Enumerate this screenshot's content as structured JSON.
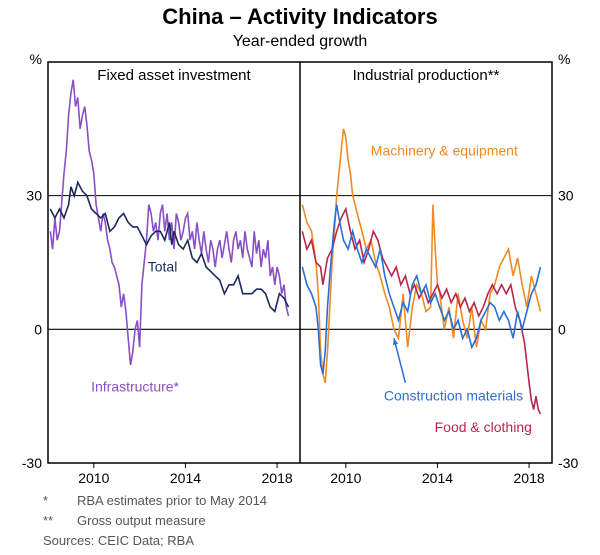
{
  "title": "China – Activity Indicators",
  "subtitle": "Year-ended growth",
  "footnote1_marker": "*",
  "footnote1_text": "RBA estimates prior to May 2014",
  "footnote2_marker": "**",
  "footnote2_text": "Gross output measure",
  "sources_label": "Sources:",
  "sources_text": "CEIC Data; RBA",
  "ylabel_left": "%",
  "ylabel_right": "%",
  "panel_left_title": "Fixed asset investment",
  "panel_right_title": "Industrial production**",
  "label_total": "Total",
  "label_infrastructure": "Infrastructure*",
  "label_machinery": "Machinery & equipment",
  "label_construction": "Construction materials",
  "label_food": "Food & clothing",
  "ylim": [
    -30,
    60
  ],
  "yticks": [
    -30,
    0,
    30
  ],
  "xrange": [
    2008,
    2019
  ],
  "xticks": [
    2010,
    2014,
    2018
  ],
  "colors": {
    "total": "#1b2a5a",
    "infrastructure": "#8a4fc4",
    "machinery": "#f08a24",
    "construction": "#2a6fd6",
    "food": "#b8274a",
    "axis": "#000000",
    "grid": "#000000",
    "bg": "#ffffff",
    "text": "#000000",
    "foot": "#555555"
  },
  "fonts": {
    "title_size": 22,
    "title_weight": "bold",
    "subtitle_size": 16,
    "panel_title_size": 15,
    "tick_size": 14,
    "label_size": 14,
    "foot_size": 13
  },
  "left_panel": {
    "series": {
      "total": [
        [
          2008.1,
          27
        ],
        [
          2008.3,
          25
        ],
        [
          2008.5,
          27
        ],
        [
          2008.7,
          25
        ],
        [
          2008.9,
          28
        ],
        [
          2009.0,
          32
        ],
        [
          2009.15,
          30
        ],
        [
          2009.3,
          33
        ],
        [
          2009.5,
          31
        ],
        [
          2009.7,
          30
        ],
        [
          2009.9,
          27
        ],
        [
          2010.1,
          26
        ],
        [
          2010.3,
          25
        ],
        [
          2010.5,
          26
        ],
        [
          2010.7,
          22
        ],
        [
          2010.9,
          23
        ],
        [
          2011.1,
          25
        ],
        [
          2011.3,
          26
        ],
        [
          2011.5,
          24
        ],
        [
          2011.7,
          23
        ],
        [
          2011.9,
          23
        ],
        [
          2012.1,
          21
        ],
        [
          2012.3,
          19
        ],
        [
          2012.5,
          21
        ],
        [
          2012.7,
          22
        ],
        [
          2012.9,
          22
        ],
        [
          2013.1,
          20
        ],
        [
          2013.3,
          24
        ],
        [
          2013.4,
          19
        ],
        [
          2013.5,
          22
        ],
        [
          2013.7,
          19
        ],
        [
          2013.9,
          18
        ],
        [
          2014.1,
          20
        ],
        [
          2014.3,
          16
        ],
        [
          2014.5,
          15
        ],
        [
          2014.7,
          17
        ],
        [
          2014.9,
          14
        ],
        [
          2015.1,
          13
        ],
        [
          2015.3,
          12
        ],
        [
          2015.5,
          11
        ],
        [
          2015.7,
          8
        ],
        [
          2015.9,
          10
        ],
        [
          2016.1,
          10
        ],
        [
          2016.3,
          12
        ],
        [
          2016.5,
          8
        ],
        [
          2016.7,
          8
        ],
        [
          2016.9,
          8
        ],
        [
          2017.1,
          9
        ],
        [
          2017.3,
          9
        ],
        [
          2017.5,
          8
        ],
        [
          2017.7,
          5
        ],
        [
          2017.9,
          4
        ],
        [
          2018.1,
          8
        ],
        [
          2018.3,
          7
        ],
        [
          2018.5,
          5
        ]
      ],
      "infrastructure": [
        [
          2008.1,
          22
        ],
        [
          2008.2,
          18
        ],
        [
          2008.3,
          25
        ],
        [
          2008.4,
          20
        ],
        [
          2008.5,
          22
        ],
        [
          2008.7,
          35
        ],
        [
          2008.8,
          40
        ],
        [
          2008.9,
          48
        ],
        [
          2009.0,
          53
        ],
        [
          2009.1,
          56
        ],
        [
          2009.2,
          50
        ],
        [
          2009.3,
          52
        ],
        [
          2009.4,
          45
        ],
        [
          2009.5,
          48
        ],
        [
          2009.6,
          50
        ],
        [
          2009.7,
          46
        ],
        [
          2009.8,
          40
        ],
        [
          2009.9,
          38
        ],
        [
          2010.0,
          35
        ],
        [
          2010.1,
          28
        ],
        [
          2010.2,
          25
        ],
        [
          2010.3,
          22
        ],
        [
          2010.4,
          26
        ],
        [
          2010.5,
          24
        ],
        [
          2010.6,
          20
        ],
        [
          2010.7,
          18
        ],
        [
          2010.8,
          15
        ],
        [
          2010.9,
          14
        ],
        [
          2011.0,
          12
        ],
        [
          2011.1,
          10
        ],
        [
          2011.2,
          5
        ],
        [
          2011.3,
          8
        ],
        [
          2011.4,
          4
        ],
        [
          2011.5,
          -2
        ],
        [
          2011.6,
          -8
        ],
        [
          2011.7,
          -5
        ],
        [
          2011.8,
          0
        ],
        [
          2011.9,
          2
        ],
        [
          2012.0,
          -4
        ],
        [
          2012.1,
          10
        ],
        [
          2012.2,
          15
        ],
        [
          2012.3,
          20
        ],
        [
          2012.4,
          28
        ],
        [
          2012.5,
          26
        ],
        [
          2012.6,
          22
        ],
        [
          2012.7,
          24
        ],
        [
          2012.8,
          20
        ],
        [
          2012.9,
          26
        ],
        [
          2013.0,
          28
        ],
        [
          2013.1,
          22
        ],
        [
          2013.2,
          26
        ],
        [
          2013.3,
          20
        ],
        [
          2013.4,
          24
        ],
        [
          2013.5,
          18
        ],
        [
          2013.6,
          26
        ],
        [
          2013.7,
          24
        ],
        [
          2013.8,
          20
        ],
        [
          2013.9,
          22
        ],
        [
          2014.0,
          25
        ],
        [
          2014.1,
          26
        ],
        [
          2014.2,
          20
        ],
        [
          2014.3,
          22
        ],
        [
          2014.4,
          18
        ],
        [
          2014.5,
          24
        ],
        [
          2014.6,
          20
        ],
        [
          2014.7,
          17
        ],
        [
          2014.8,
          22
        ],
        [
          2014.9,
          18
        ],
        [
          2015.0,
          15
        ],
        [
          2015.1,
          20
        ],
        [
          2015.2,
          18
        ],
        [
          2015.3,
          14
        ],
        [
          2015.4,
          18
        ],
        [
          2015.5,
          20
        ],
        [
          2015.6,
          16
        ],
        [
          2015.7,
          19
        ],
        [
          2015.8,
          22
        ],
        [
          2015.9,
          18
        ],
        [
          2016.0,
          15
        ],
        [
          2016.1,
          20
        ],
        [
          2016.2,
          22
        ],
        [
          2016.3,
          18
        ],
        [
          2016.4,
          20
        ],
        [
          2016.5,
          16
        ],
        [
          2016.6,
          22
        ],
        [
          2016.7,
          18
        ],
        [
          2016.8,
          16
        ],
        [
          2016.9,
          14
        ],
        [
          2017.0,
          22
        ],
        [
          2017.1,
          17
        ],
        [
          2017.2,
          20
        ],
        [
          2017.3,
          14
        ],
        [
          2017.4,
          18
        ],
        [
          2017.5,
          16
        ],
        [
          2017.6,
          20
        ],
        [
          2017.7,
          12
        ],
        [
          2017.8,
          14
        ],
        [
          2017.9,
          10
        ],
        [
          2018.0,
          14
        ],
        [
          2018.1,
          12
        ],
        [
          2018.2,
          8
        ],
        [
          2018.3,
          10
        ],
        [
          2018.4,
          5
        ],
        [
          2018.5,
          3
        ]
      ]
    }
  },
  "right_panel": {
    "series": {
      "machinery": [
        [
          2008.1,
          28
        ],
        [
          2008.3,
          24
        ],
        [
          2008.5,
          22
        ],
        [
          2008.7,
          15
        ],
        [
          2008.8,
          8
        ],
        [
          2008.9,
          -5
        ],
        [
          2009.0,
          -10
        ],
        [
          2009.1,
          -12
        ],
        [
          2009.2,
          -5
        ],
        [
          2009.3,
          5
        ],
        [
          2009.4,
          15
        ],
        [
          2009.5,
          22
        ],
        [
          2009.6,
          30
        ],
        [
          2009.7,
          35
        ],
        [
          2009.8,
          40
        ],
        [
          2009.9,
          45
        ],
        [
          2010.0,
          43
        ],
        [
          2010.1,
          38
        ],
        [
          2010.2,
          35
        ],
        [
          2010.3,
          30
        ],
        [
          2010.4,
          28
        ],
        [
          2010.5,
          26
        ],
        [
          2010.7,
          22
        ],
        [
          2010.9,
          18
        ],
        [
          2011.1,
          20
        ],
        [
          2011.3,
          15
        ],
        [
          2011.5,
          12
        ],
        [
          2011.7,
          8
        ],
        [
          2011.9,
          5
        ],
        [
          2012.1,
          0
        ],
        [
          2012.3,
          -2
        ],
        [
          2012.5,
          8
        ],
        [
          2012.7,
          -4
        ],
        [
          2012.9,
          5
        ],
        [
          2013.1,
          10
        ],
        [
          2013.3,
          8
        ],
        [
          2013.5,
          4
        ],
        [
          2013.7,
          5
        ],
        [
          2013.8,
          28
        ],
        [
          2013.9,
          18
        ],
        [
          2014.0,
          10
        ],
        [
          2014.1,
          8
        ],
        [
          2014.3,
          0
        ],
        [
          2014.5,
          5
        ],
        [
          2014.7,
          -2
        ],
        [
          2014.9,
          8
        ],
        [
          2015.1,
          2
        ],
        [
          2015.3,
          -2
        ],
        [
          2015.5,
          5
        ],
        [
          2015.7,
          -4
        ],
        [
          2015.9,
          2
        ],
        [
          2016.1,
          0
        ],
        [
          2016.3,
          8
        ],
        [
          2016.5,
          10
        ],
        [
          2016.7,
          14
        ],
        [
          2016.9,
          16
        ],
        [
          2017.1,
          18
        ],
        [
          2017.3,
          12
        ],
        [
          2017.5,
          16
        ],
        [
          2017.7,
          10
        ],
        [
          2017.9,
          5
        ],
        [
          2018.1,
          12
        ],
        [
          2018.3,
          8
        ],
        [
          2018.5,
          4
        ]
      ],
      "construction": [
        [
          2008.1,
          14
        ],
        [
          2008.3,
          10
        ],
        [
          2008.5,
          8
        ],
        [
          2008.7,
          5
        ],
        [
          2008.8,
          0
        ],
        [
          2008.9,
          -8
        ],
        [
          2009.0,
          -10
        ],
        [
          2009.1,
          -5
        ],
        [
          2009.2,
          5
        ],
        [
          2009.3,
          12
        ],
        [
          2009.4,
          18
        ],
        [
          2009.5,
          24
        ],
        [
          2009.6,
          28
        ],
        [
          2009.7,
          25
        ],
        [
          2009.9,
          20
        ],
        [
          2010.1,
          18
        ],
        [
          2010.3,
          22
        ],
        [
          2010.5,
          18
        ],
        [
          2010.7,
          15
        ],
        [
          2010.9,
          18
        ],
        [
          2011.1,
          16
        ],
        [
          2011.3,
          14
        ],
        [
          2011.5,
          18
        ],
        [
          2011.7,
          12
        ],
        [
          2011.9,
          8
        ],
        [
          2012.1,
          5
        ],
        [
          2012.3,
          2
        ],
        [
          2012.5,
          6
        ],
        [
          2012.7,
          4
        ],
        [
          2012.9,
          10
        ],
        [
          2013.1,
          12
        ],
        [
          2013.3,
          8
        ],
        [
          2013.5,
          10
        ],
        [
          2013.7,
          6
        ],
        [
          2013.9,
          8
        ],
        [
          2014.1,
          5
        ],
        [
          2014.3,
          2
        ],
        [
          2014.5,
          4
        ],
        [
          2014.7,
          0
        ],
        [
          2014.9,
          2
        ],
        [
          2015.1,
          -2
        ],
        [
          2015.3,
          0
        ],
        [
          2015.5,
          -4
        ],
        [
          2015.7,
          -2
        ],
        [
          2015.9,
          2
        ],
        [
          2016.1,
          4
        ],
        [
          2016.3,
          6
        ],
        [
          2016.5,
          5
        ],
        [
          2016.7,
          2
        ],
        [
          2016.9,
          4
        ],
        [
          2017.1,
          2
        ],
        [
          2017.3,
          -2
        ],
        [
          2017.5,
          4
        ],
        [
          2017.7,
          0
        ],
        [
          2017.9,
          4
        ],
        [
          2018.1,
          8
        ],
        [
          2018.3,
          10
        ],
        [
          2018.5,
          14
        ]
      ],
      "food": [
        [
          2008.1,
          22
        ],
        [
          2008.3,
          18
        ],
        [
          2008.5,
          20
        ],
        [
          2008.7,
          15
        ],
        [
          2008.9,
          14
        ],
        [
          2009.0,
          10
        ],
        [
          2009.2,
          16
        ],
        [
          2009.4,
          18
        ],
        [
          2009.6,
          22
        ],
        [
          2009.8,
          25
        ],
        [
          2010.0,
          27
        ],
        [
          2010.2,
          22
        ],
        [
          2010.4,
          18
        ],
        [
          2010.6,
          20
        ],
        [
          2010.8,
          15
        ],
        [
          2011.0,
          18
        ],
        [
          2011.2,
          22
        ],
        [
          2011.4,
          20
        ],
        [
          2011.6,
          16
        ],
        [
          2011.8,
          14
        ],
        [
          2012.0,
          12
        ],
        [
          2012.2,
          14
        ],
        [
          2012.4,
          10
        ],
        [
          2012.6,
          12
        ],
        [
          2012.8,
          8
        ],
        [
          2013.0,
          10
        ],
        [
          2013.2,
          7
        ],
        [
          2013.4,
          9
        ],
        [
          2013.6,
          6
        ],
        [
          2013.8,
          8
        ],
        [
          2014.0,
          10
        ],
        [
          2014.2,
          7
        ],
        [
          2014.4,
          9
        ],
        [
          2014.6,
          6
        ],
        [
          2014.8,
          8
        ],
        [
          2015.0,
          5
        ],
        [
          2015.2,
          7
        ],
        [
          2015.4,
          4
        ],
        [
          2015.6,
          6
        ],
        [
          2015.8,
          3
        ],
        [
          2016.0,
          5
        ],
        [
          2016.2,
          8
        ],
        [
          2016.4,
          10
        ],
        [
          2016.6,
          8
        ],
        [
          2016.8,
          10
        ],
        [
          2017.0,
          8
        ],
        [
          2017.2,
          10
        ],
        [
          2017.4,
          5
        ],
        [
          2017.6,
          2
        ],
        [
          2017.8,
          -3
        ],
        [
          2018.0,
          -12
        ],
        [
          2018.1,
          -16
        ],
        [
          2018.2,
          -18
        ],
        [
          2018.3,
          -15
        ],
        [
          2018.4,
          -18
        ],
        [
          2018.5,
          -19
        ]
      ]
    },
    "arrow": {
      "from": [
        2012.6,
        -12
      ],
      "to": [
        2012.1,
        -2
      ]
    }
  }
}
